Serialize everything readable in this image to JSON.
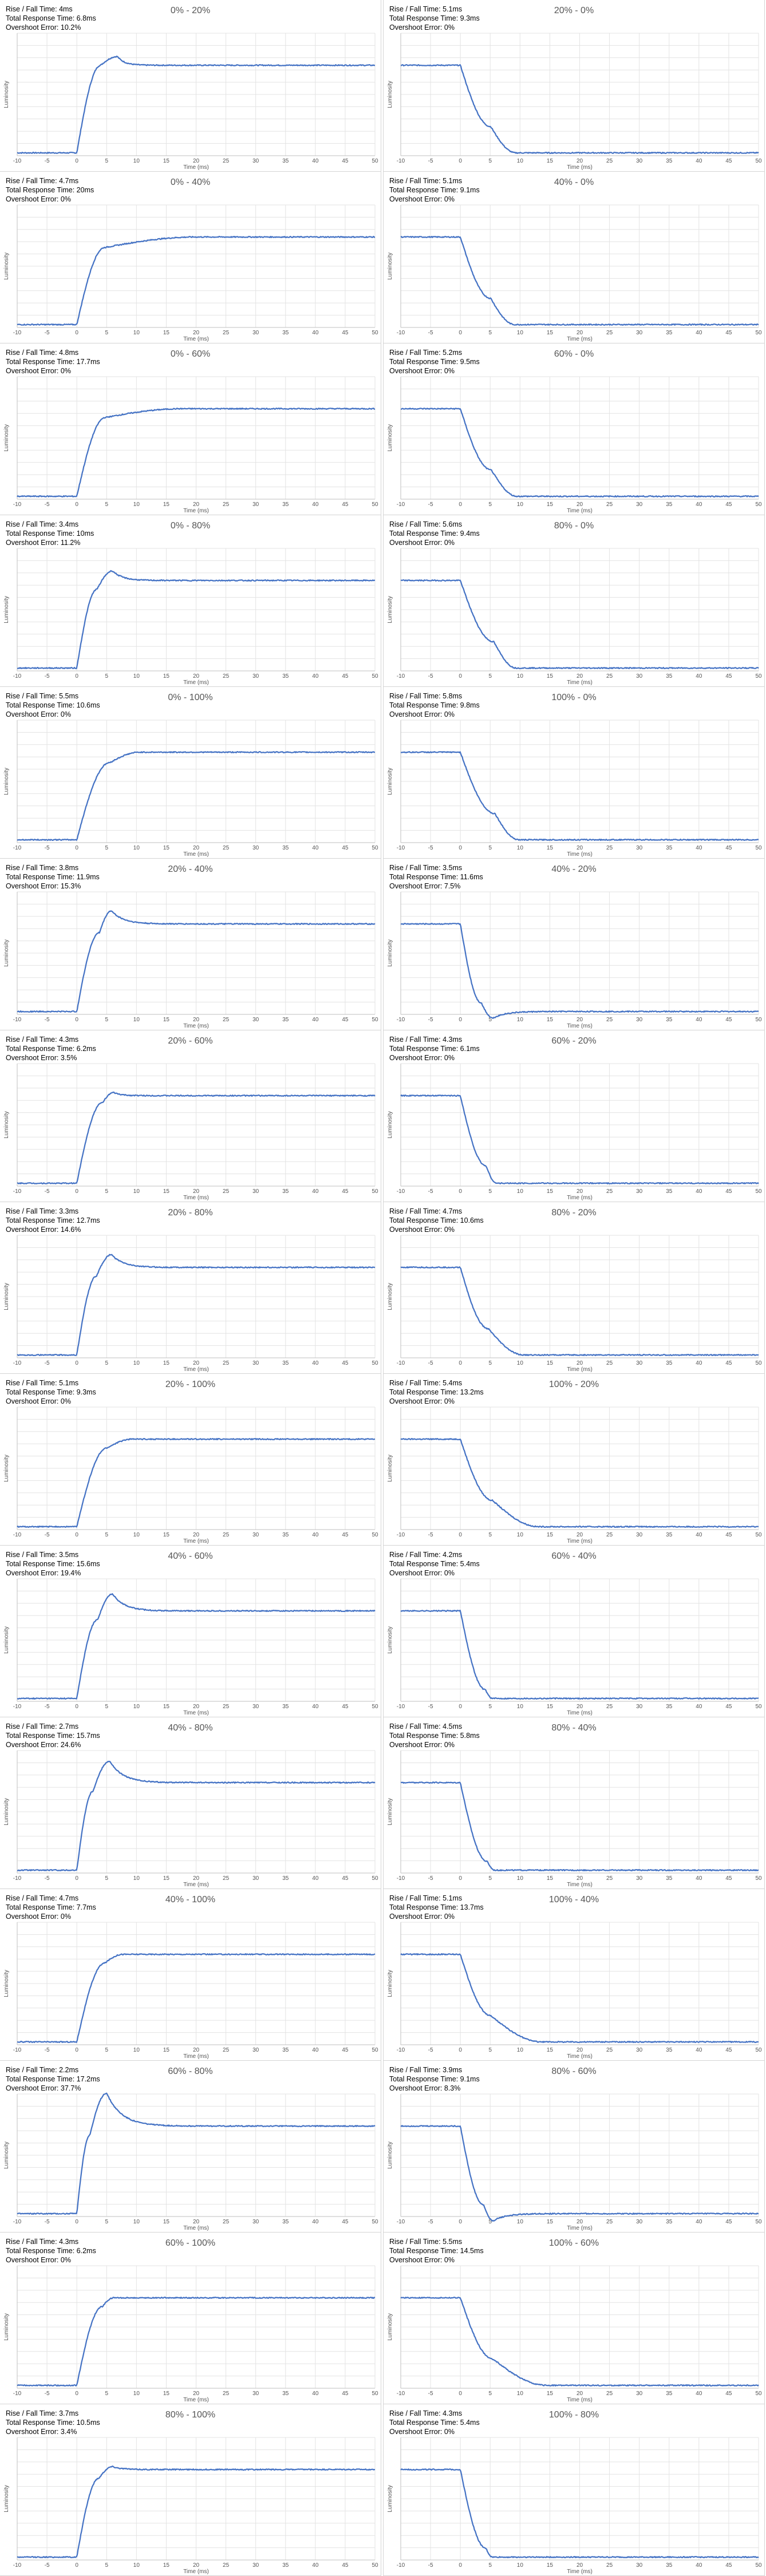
{
  "chart_data": {
    "type": "line",
    "x_axis_label": "Time (ms)",
    "y_axis_label": "Luminosity",
    "x_ticks": [
      -10,
      -5,
      0,
      5,
      10,
      15,
      20,
      25,
      30,
      35,
      40,
      45,
      50
    ],
    "xlim": [
      -10,
      50
    ],
    "grid": true,
    "line_color": "#4472c4",
    "panels": [
      {
        "title": "0% - 20%",
        "rise_fall": "Rise / Fall Time: 4ms",
        "total_response": "Total Response Time: 6.8ms",
        "overshoot": "Overshoot Error: 10.2%",
        "x": [
          -10,
          0,
          4.0,
          6.8,
          50
        ],
        "y": [
          0,
          0,
          1.0,
          1.1,
          1.0
        ],
        "settle": 1.2
      },
      {
        "title": "20% - 0%",
        "rise_fall": "Rise / Fall Time: 5.1ms",
        "total_response": "Total Response Time: 9.3ms",
        "overshoot": "Overshoot Error: 0%",
        "x": [
          -10,
          0,
          5.1,
          9.3,
          50
        ],
        "y": [
          1,
          1,
          0.3,
          0,
          0
        ],
        "settle": 0.5
      },
      {
        "title": "0% - 40%",
        "rise_fall": "Rise / Fall Time: 4.7ms",
        "total_response": "Total Response Time: 20ms",
        "overshoot": "Overshoot Error: 0%",
        "x": [
          -10,
          0,
          4.7,
          20,
          50
        ],
        "y": [
          0,
          0,
          0.88,
          1.0,
          1.0
        ],
        "settle": 1.0
      },
      {
        "title": "40% - 0%",
        "rise_fall": "Rise / Fall Time: 5.1ms",
        "total_response": "Total Response Time: 9.1ms",
        "overshoot": "Overshoot Error: 0%",
        "x": [
          -10,
          0,
          5.1,
          9.1,
          50
        ],
        "y": [
          1,
          1,
          0.3,
          0,
          0
        ],
        "settle": 0.5
      },
      {
        "title": "0% - 60%",
        "rise_fall": "Rise / Fall Time: 4.8ms",
        "total_response": "Total Response Time: 17.7ms",
        "overshoot": "Overshoot Error: 0%",
        "x": [
          -10,
          0,
          4.8,
          17.7,
          50
        ],
        "y": [
          0,
          0,
          0.9,
          1.0,
          1.0
        ],
        "settle": 1.0
      },
      {
        "title": "60% - 0%",
        "rise_fall": "Rise / Fall Time: 5.2ms",
        "total_response": "Total Response Time: 9.5ms",
        "overshoot": "Overshoot Error: 0%",
        "x": [
          -10,
          0,
          5.2,
          9.5,
          50
        ],
        "y": [
          1,
          1,
          0.3,
          0,
          0
        ],
        "settle": 0.5
      },
      {
        "title": "0% - 80%",
        "rise_fall": "Rise / Fall Time: 3.4ms",
        "total_response": "Total Response Time: 10ms",
        "overshoot": "Overshoot Error: 11.2%",
        "x": [
          -10,
          0,
          3.4,
          6.0,
          50
        ],
        "y": [
          0,
          0,
          0.9,
          1.11,
          1.0
        ],
        "settle": 1.6
      },
      {
        "title": "80% - 0%",
        "rise_fall": "Rise / Fall Time: 5.6ms",
        "total_response": "Total Response Time: 9.4ms",
        "overshoot": "Overshoot Error: 0%",
        "x": [
          -10,
          0,
          5.6,
          9.4,
          50
        ],
        "y": [
          1,
          1,
          0.3,
          0,
          0
        ],
        "settle": 0.5
      },
      {
        "title": "0% - 100%",
        "rise_fall": "Rise / Fall Time: 5.5ms",
        "total_response": "Total Response Time: 10.6ms",
        "overshoot": "Overshoot Error: 0%",
        "x": [
          -10,
          0,
          5.5,
          10.6,
          50
        ],
        "y": [
          0,
          0,
          0.88,
          1.0,
          1.0
        ],
        "settle": 0.5
      },
      {
        "title": "100% - 0%",
        "rise_fall": "Rise / Fall Time: 5.8ms",
        "total_response": "Total Response Time: 9.8ms",
        "overshoot": "Overshoot Error: 0%",
        "x": [
          -10,
          0,
          5.8,
          9.8,
          50
        ],
        "y": [
          1,
          1,
          0.3,
          0,
          0
        ],
        "settle": 0.5
      },
      {
        "title": "20% - 40%",
        "rise_fall": "Rise / Fall Time: 3.8ms",
        "total_response": "Total Response Time: 11.9ms",
        "overshoot": "Overshoot Error: 15.3%",
        "x": [
          -10,
          0,
          3.8,
          5.8,
          50
        ],
        "y": [
          0,
          0,
          0.9,
          1.15,
          1.0
        ],
        "settle": 2.0
      },
      {
        "title": "40% - 20%",
        "rise_fall": "Rise / Fall Time: 3.5ms",
        "total_response": "Total Response Time: 11.6ms",
        "overshoot": "Overshoot Error: 7.5%",
        "x": [
          -10,
          0,
          3.5,
          5.5,
          50
        ],
        "y": [
          1,
          1,
          0.1,
          -0.075,
          0
        ],
        "settle": 2.0
      },
      {
        "title": "20% - 60%",
        "rise_fall": "Rise / Fall Time: 4.3ms",
        "total_response": "Total Response Time: 6.2ms",
        "overshoot": "Overshoot Error: 3.5%",
        "x": [
          -10,
          0,
          4.3,
          6.2,
          50
        ],
        "y": [
          0,
          0,
          0.92,
          1.035,
          1.0
        ],
        "settle": 1.2
      },
      {
        "title": "60% - 20%",
        "rise_fall": "Rise / Fall Time: 4.3ms",
        "total_response": "Total Response Time: 6.1ms",
        "overshoot": "Overshoot Error: 0%",
        "x": [
          -10,
          0,
          4.3,
          6.1,
          50
        ],
        "y": [
          1,
          1,
          0.2,
          0,
          0
        ],
        "settle": 0.6
      },
      {
        "title": "20% - 80%",
        "rise_fall": "Rise / Fall Time: 3.3ms",
        "total_response": "Total Response Time: 12.7ms",
        "overshoot": "Overshoot Error: 14.6%",
        "x": [
          -10,
          0,
          3.3,
          5.8,
          50
        ],
        "y": [
          0,
          0,
          0.9,
          1.146,
          1.0
        ],
        "settle": 2.0
      },
      {
        "title": "80% - 20%",
        "rise_fall": "Rise / Fall Time: 4.7ms",
        "total_response": "Total Response Time: 10.6ms",
        "overshoot": "Overshoot Error: 0%",
        "x": [
          -10,
          0,
          4.7,
          10.6,
          50
        ],
        "y": [
          1,
          1,
          0.3,
          0,
          0
        ],
        "settle": 0.5
      },
      {
        "title": "20% - 100%",
        "rise_fall": "Rise / Fall Time: 5.1ms",
        "total_response": "Total Response Time: 9.3ms",
        "overshoot": "Overshoot Error: 0%",
        "x": [
          -10,
          0,
          5.1,
          9.3,
          50
        ],
        "y": [
          0,
          0,
          0.9,
          1.0,
          1.0
        ],
        "settle": 0.5
      },
      {
        "title": "100% - 20%",
        "rise_fall": "Rise / Fall Time: 5.4ms",
        "total_response": "Total Response Time: 13.2ms",
        "overshoot": "Overshoot Error: 0%",
        "x": [
          -10,
          0,
          5.4,
          13.2,
          50
        ],
        "y": [
          1,
          1,
          0.3,
          0,
          0
        ],
        "settle": 0.5
      },
      {
        "title": "40% - 60%",
        "rise_fall": "Rise / Fall Time: 3.5ms",
        "total_response": "Total Response Time: 15.6ms",
        "overshoot": "Overshoot Error: 19.4%",
        "x": [
          -10,
          0,
          3.5,
          6.0,
          50
        ],
        "y": [
          0,
          0,
          0.9,
          1.194,
          1.0
        ],
        "settle": 2.0
      },
      {
        "title": "60% - 40%",
        "rise_fall": "Rise / Fall Time: 4.2ms",
        "total_response": "Total Response Time: 5.4ms",
        "overshoot": "Overshoot Error: 0%",
        "x": [
          -10,
          0,
          4.2,
          5.4,
          50
        ],
        "y": [
          1,
          1,
          0.1,
          0,
          0
        ],
        "settle": 0.5
      },
      {
        "title": "40% - 80%",
        "rise_fall": "Rise / Fall Time: 2.7ms",
        "total_response": "Total Response Time: 15.7ms",
        "overshoot": "Overshoot Error: 24.6%",
        "x": [
          -10,
          0,
          2.7,
          5.5,
          50
        ],
        "y": [
          0,
          0,
          0.9,
          1.246,
          1.0
        ],
        "settle": 2.2
      },
      {
        "title": "80% - 40%",
        "rise_fall": "Rise / Fall Time: 4.5ms",
        "total_response": "Total Response Time: 5.8ms",
        "overshoot": "Overshoot Error: 0%",
        "x": [
          -10,
          0,
          4.5,
          5.8,
          50
        ],
        "y": [
          1,
          1,
          0.1,
          0,
          0
        ],
        "settle": 0.5
      },
      {
        "title": "40% - 100%",
        "rise_fall": "Rise / Fall Time: 4.7ms",
        "total_response": "Total Response Time: 7.7ms",
        "overshoot": "Overshoot Error: 0%",
        "x": [
          -10,
          0,
          4.7,
          7.7,
          50
        ],
        "y": [
          0,
          0,
          0.9,
          1.0,
          1.0
        ],
        "settle": 0.5
      },
      {
        "title": "100% - 40%",
        "rise_fall": "Rise / Fall Time: 5.1ms",
        "total_response": "Total Response Time: 13.7ms",
        "overshoot": "Overshoot Error: 0%",
        "x": [
          -10,
          0,
          5.1,
          13.7,
          50
        ],
        "y": [
          1,
          1,
          0.3,
          0,
          0
        ],
        "settle": 0.5
      },
      {
        "title": "60% - 80%",
        "rise_fall": "Rise / Fall Time: 2.2ms",
        "total_response": "Total Response Time: 17.2ms",
        "overshoot": "Overshoot Error: 37.7%",
        "x": [
          -10,
          0,
          2.2,
          5.0,
          50
        ],
        "y": [
          0,
          0,
          0.9,
          1.377,
          1.0
        ],
        "settle": 2.5
      },
      {
        "title": "80% - 60%",
        "rise_fall": "Rise / Fall Time: 3.9ms",
        "total_response": "Total Response Time: 9.1ms",
        "overshoot": "Overshoot Error: 8.3%",
        "x": [
          -10,
          0,
          3.9,
          5.5,
          50
        ],
        "y": [
          1,
          1,
          0.1,
          -0.083,
          0
        ],
        "settle": 2.0
      },
      {
        "title": "60% - 100%",
        "rise_fall": "Rise / Fall Time: 4.3ms",
        "total_response": "Total Response Time: 6.2ms",
        "overshoot": "Overshoot Error: 0%",
        "x": [
          -10,
          0,
          4.3,
          6.2,
          50
        ],
        "y": [
          0,
          0,
          0.9,
          1.0,
          1.0
        ],
        "settle": 0.5
      },
      {
        "title": "100% - 60%",
        "rise_fall": "Rise / Fall Time: 5.5ms",
        "total_response": "Total Response Time: 14.5ms",
        "overshoot": "Overshoot Error: 0%",
        "x": [
          -10,
          0,
          5.5,
          14.5,
          50
        ],
        "y": [
          1,
          1,
          0.3,
          0,
          0
        ],
        "settle": 0.5
      },
      {
        "title": "80% - 100%",
        "rise_fall": "Rise / Fall Time: 3.7ms",
        "total_response": "Total Response Time: 10.5ms",
        "overshoot": "Overshoot Error: 3.4%",
        "x": [
          -10,
          0,
          3.7,
          6.0,
          50
        ],
        "y": [
          0,
          0,
          0.9,
          1.034,
          1.0
        ],
        "settle": 1.5
      },
      {
        "title": "100% - 80%",
        "rise_fall": "Rise / Fall Time: 4.3ms",
        "total_response": "Total Response Time: 5.4ms",
        "overshoot": "Overshoot Error: 0%",
        "x": [
          -10,
          0,
          4.3,
          5.4,
          50
        ],
        "y": [
          1,
          1,
          0.1,
          0,
          0
        ],
        "settle": 0.5
      }
    ]
  }
}
